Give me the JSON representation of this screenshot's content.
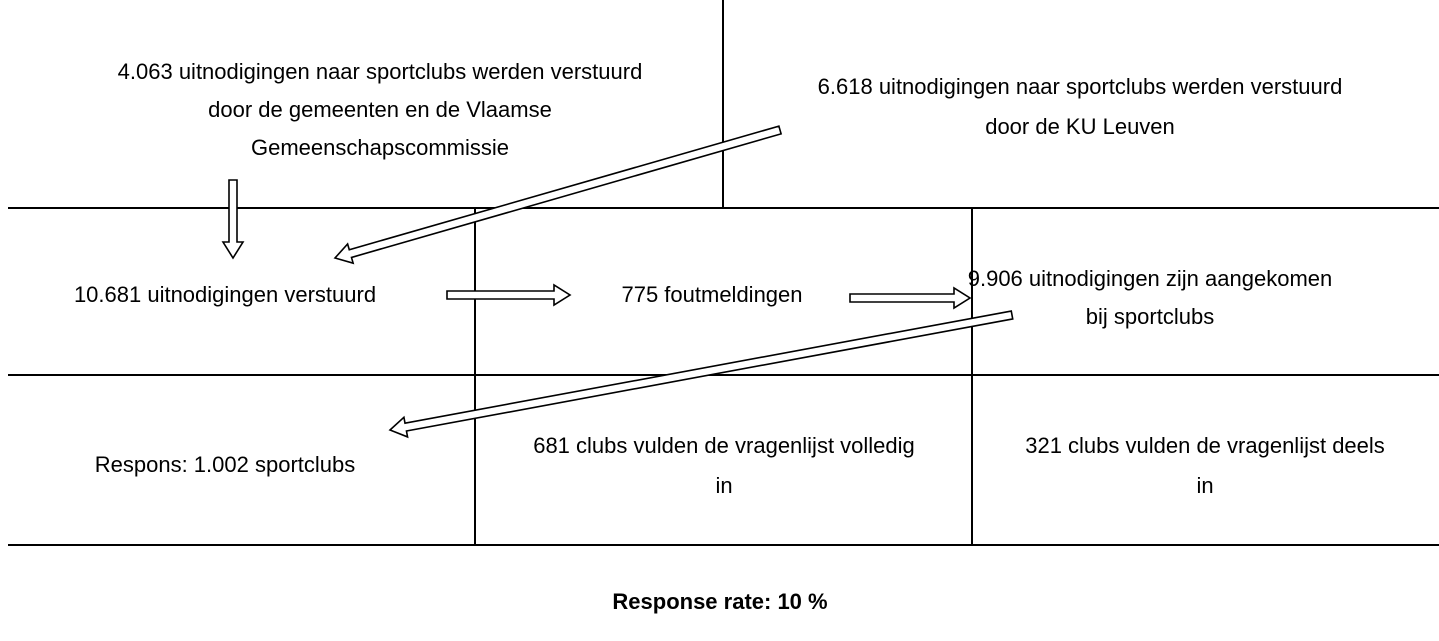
{
  "cells": [
    {
      "lines": [
        "4.063 uitnodigingen naar sportclubs werden verstuurd",
        "door de gemeenten en de Vlaamse",
        "Gemeenschapscommissie"
      ]
    },
    {
      "lines": [
        "6.618 uitnodigingen naar sportclubs werden verstuurd",
        "door de KU Leuven"
      ]
    },
    {
      "lines": [
        "10.681 uitnodigingen verstuurd"
      ]
    },
    {
      "lines": [
        "775 foutmeldingen"
      ]
    },
    {
      "lines": [
        "9.906 uitnodigingen zijn aangekomen",
        "bij sportclubs"
      ]
    },
    {
      "lines": [
        "Respons: 1.002 sportclubs"
      ]
    },
    {
      "lines": [
        "681 clubs vulden de vragenlijst volledig",
        "in"
      ]
    },
    {
      "lines": [
        "321 clubs vulden de vragenlijst deels",
        "in"
      ]
    }
  ],
  "footer": "Response rate: 10 %"
}
